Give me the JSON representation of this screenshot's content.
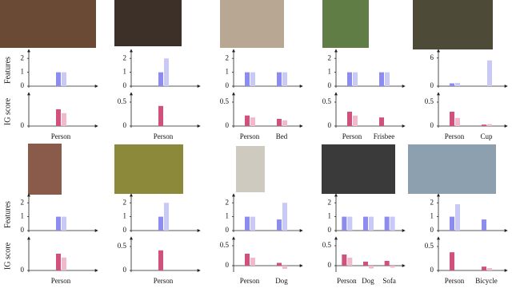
{
  "chart_data": [
    {
      "type": "bar",
      "ylabel": "Features",
      "categories": [
        null
      ],
      "ylim": [
        0,
        2.3
      ],
      "yticks": [
        0,
        1,
        2
      ],
      "series": [
        {
          "color": "#8c8cee",
          "values": [
            1
          ]
        },
        {
          "color": "#c9c9f7",
          "values": [
            1
          ]
        }
      ]
    },
    {
      "type": "bar",
      "ylabel": "IG score",
      "categories": [
        "Person"
      ],
      "ylim": [
        0,
        0.6
      ],
      "yticks": [
        0
      ],
      "series": [
        {
          "color": "#d0527c",
          "values": [
            0.35
          ]
        },
        {
          "color": "#f3b9ca",
          "values": [
            0.27
          ]
        }
      ]
    },
    {
      "type": "bar",
      "categories": [
        null
      ],
      "ylim": [
        0,
        2.3
      ],
      "yticks": [
        0,
        1,
        2
      ],
      "series": [
        {
          "color": "#8c8cee",
          "values": [
            1
          ]
        },
        {
          "color": "#c9c9f7",
          "values": [
            2
          ]
        }
      ]
    },
    {
      "type": "bar",
      "categories": [
        "Person"
      ],
      "ylim": [
        0,
        0.6
      ],
      "yticks": [
        0,
        0.5
      ],
      "series": [
        {
          "color": "#d0527c",
          "values": [
            0.42
          ]
        },
        {
          "color": "#f3b9ca",
          "values": [
            0
          ]
        }
      ]
    },
    {
      "type": "bar",
      "categories": [
        null,
        null
      ],
      "ylim": [
        0,
        2.3
      ],
      "yticks": [
        0,
        1,
        2
      ],
      "series": [
        {
          "color": "#8c8cee",
          "values": [
            1,
            1
          ]
        },
        {
          "color": "#c9c9f7",
          "values": [
            1,
            1
          ]
        }
      ]
    },
    {
      "type": "bar",
      "categories": [
        "Person",
        "Bed"
      ],
      "ylim": [
        0,
        0.6
      ],
      "yticks": [
        0,
        0.5
      ],
      "series": [
        {
          "color": "#d0527c",
          "values": [
            0.22,
            0.15
          ]
        },
        {
          "color": "#f3b9ca",
          "values": [
            0.18,
            0.12
          ]
        }
      ]
    },
    {
      "type": "bar",
      "categories": [
        null,
        null
      ],
      "ylim": [
        0,
        2.3
      ],
      "yticks": [
        0,
        1,
        2
      ],
      "series": [
        {
          "color": "#8c8cee",
          "values": [
            1,
            1
          ]
        },
        {
          "color": "#c9c9f7",
          "values": [
            1,
            1
          ]
        }
      ]
    },
    {
      "type": "bar",
      "categories": [
        "Person",
        "Frisbee"
      ],
      "ylim": [
        0,
        0.6
      ],
      "yticks": [
        0,
        0.5
      ],
      "series": [
        {
          "color": "#d0527c",
          "values": [
            0.3,
            0.18
          ]
        },
        {
          "color": "#f3b9ca",
          "values": [
            0.22,
            0
          ]
        }
      ]
    },
    {
      "type": "bar",
      "categories": [
        null,
        null
      ],
      "ylim": [
        0,
        6.8
      ],
      "yticks": [
        0,
        6
      ],
      "series": [
        {
          "color": "#8c8cee",
          "values": [
            0.6,
            0
          ]
        },
        {
          "color": "#c9c9f7",
          "values": [
            0.7,
            5.5
          ]
        }
      ]
    },
    {
      "type": "bar",
      "categories": [
        "Person",
        "Cup"
      ],
      "ylim": [
        0,
        0.6
      ],
      "yticks": [
        0,
        0.5
      ],
      "series": [
        {
          "color": "#d0527c",
          "values": [
            0.3,
            0.03
          ]
        },
        {
          "color": "#f3b9ca",
          "values": [
            0.17,
            0.04
          ]
        }
      ]
    },
    {
      "type": "bar",
      "ylabel": "Features",
      "categories": [
        null
      ],
      "ylim": [
        0,
        2.3
      ],
      "yticks": [
        0,
        1,
        2
      ],
      "series": [
        {
          "color": "#8c8cee",
          "values": [
            1
          ]
        },
        {
          "color": "#c9c9f7",
          "values": [
            1
          ]
        }
      ]
    },
    {
      "type": "bar",
      "ylabel": "IG score",
      "categories": [
        "Person"
      ],
      "ylim": [
        0,
        0.6
      ],
      "yticks": [
        0
      ],
      "series": [
        {
          "color": "#d0527c",
          "values": [
            0.35
          ]
        },
        {
          "color": "#f3b9ca",
          "values": [
            0.27
          ]
        }
      ]
    },
    {
      "type": "bar",
      "categories": [
        null
      ],
      "ylim": [
        0,
        2.3
      ],
      "yticks": [
        0,
        1,
        2
      ],
      "series": [
        {
          "color": "#8c8cee",
          "values": [
            1
          ]
        },
        {
          "color": "#c9c9f7",
          "values": [
            2
          ]
        }
      ]
    },
    {
      "type": "bar",
      "categories": [
        "Person"
      ],
      "ylim": [
        0,
        0.6
      ],
      "yticks": [
        0,
        0.5
      ],
      "series": [
        {
          "color": "#d0527c",
          "values": [
            0.42
          ]
        },
        {
          "color": "#f3b9ca",
          "values": [
            0
          ]
        }
      ]
    },
    {
      "type": "bar",
      "categories": [
        null,
        null
      ],
      "ylim": [
        0,
        2.3
      ],
      "yticks": [
        0,
        1,
        2
      ],
      "series": [
        {
          "color": "#8c8cee",
          "values": [
            1,
            0.8
          ]
        },
        {
          "color": "#c9c9f7",
          "values": [
            1,
            2
          ]
        }
      ]
    },
    {
      "type": "bar",
      "categories": [
        "Person",
        "Dog"
      ],
      "ylim": [
        -0.12,
        0.6
      ],
      "yticks": [
        0,
        0.5
      ],
      "series": [
        {
          "color": "#d0527c",
          "values": [
            0.3,
            0.07
          ]
        },
        {
          "color": "#f3b9ca",
          "values": [
            0.2,
            -0.08
          ]
        }
      ]
    },
    {
      "type": "bar",
      "categories": [
        null,
        null,
        null
      ],
      "ylim": [
        0,
        2.3
      ],
      "yticks": [
        0,
        1,
        2
      ],
      "series": [
        {
          "color": "#8c8cee",
          "values": [
            1,
            1,
            1
          ]
        },
        {
          "color": "#c9c9f7",
          "values": [
            1,
            1,
            1
          ]
        }
      ]
    },
    {
      "type": "bar",
      "categories": [
        "Person",
        "Dog",
        "Sofa"
      ],
      "ylim": [
        -0.12,
        0.6
      ],
      "yticks": [
        0,
        0.5
      ],
      "series": [
        {
          "color": "#d0527c",
          "values": [
            0.28,
            0.1,
            0.12
          ]
        },
        {
          "color": "#f3b9ca",
          "values": [
            0.2,
            -0.07,
            -0.05
          ]
        }
      ]
    },
    {
      "type": "bar",
      "categories": [
        null,
        null
      ],
      "ylim": [
        0,
        2.3
      ],
      "yticks": [
        0,
        1,
        2
      ],
      "series": [
        {
          "color": "#8c8cee",
          "values": [
            1,
            0.8
          ]
        },
        {
          "color": "#c9c9f7",
          "values": [
            1.9,
            0
          ]
        }
      ]
    },
    {
      "type": "bar",
      "categories": [
        "Person",
        "Bicycle"
      ],
      "ylim": [
        0,
        0.6
      ],
      "yticks": [
        0,
        0.5
      ],
      "series": [
        {
          "color": "#d0527c",
          "values": [
            0.38,
            0.08
          ]
        },
        {
          "color": "#f3b9ca",
          "values": [
            0,
            0.05
          ]
        }
      ]
    }
  ]
}
